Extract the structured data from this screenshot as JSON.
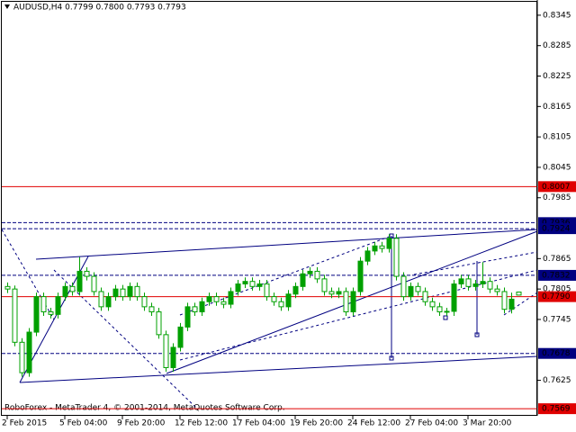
{
  "chart_data": {
    "type": "candlestick",
    "header": "AUDUSD,H4  0.7799 0.7800 0.7793 0.7793",
    "footer": "RoboForex - MetaTrader 4, © 2001-2014, MetaQuotes Software Corp.",
    "ylim": [
      0.7555,
      0.8375
    ],
    "yticks": [
      0.8345,
      0.8285,
      0.8225,
      0.8165,
      0.8105,
      0.8045,
      0.7985,
      0.7865,
      0.7805,
      0.7745,
      0.7625
    ],
    "levels": [
      {
        "value": 0.8007,
        "color": "#e00000",
        "dash": false
      },
      {
        "value": 0.7936,
        "color": "#000080",
        "dash": true
      },
      {
        "value": 0.7924,
        "color": "#000080",
        "dash": true
      },
      {
        "value": 0.7832,
        "color": "#000080",
        "dash": true
      },
      {
        "value": 0.779,
        "label": "0.7790",
        "color": "#e00000",
        "dash": false
      },
      {
        "value": 0.7678,
        "color": "#000080",
        "dash": true
      },
      {
        "value": 0.7569,
        "color": "#e00000",
        "dash": false
      }
    ],
    "bull_color": "#00a000",
    "bear_color": "#ffffff",
    "wick_color": "#00a000",
    "categories": [
      "2 Feb 2015",
      null,
      null,
      null,
      null,
      null,
      null,
      null,
      "5 Feb 04:00",
      null,
      null,
      null,
      null,
      null,
      null,
      null,
      "9 Feb 20:00",
      null,
      null,
      null,
      null,
      null,
      null,
      null,
      "12 Feb 12:00",
      null,
      null,
      null,
      null,
      null,
      null,
      null,
      "17 Feb 04:00",
      null,
      null,
      null,
      null,
      null,
      null,
      null,
      "19 Feb 20:00",
      null,
      null,
      null,
      null,
      null,
      null,
      null,
      "24 Feb 12:00",
      null,
      null,
      null,
      null,
      null,
      null,
      null,
      "27 Feb 04:00",
      null,
      null,
      null,
      null,
      null,
      null,
      null,
      "3 Mar 20:00",
      null,
      null,
      null,
      null,
      null,
      null,
      null
    ],
    "candles": [
      [
        0.781,
        0.7818,
        0.7797,
        0.7805
      ],
      [
        0.7805,
        0.7812,
        0.7692,
        0.77
      ],
      [
        0.77,
        0.7708,
        0.7632,
        0.764
      ],
      [
        0.764,
        0.7728,
        0.7632,
        0.772
      ],
      [
        0.772,
        0.7798,
        0.7712,
        0.779
      ],
      [
        0.779,
        0.7798,
        0.7752,
        0.776
      ],
      [
        0.776,
        0.7768,
        0.7747,
        0.7755
      ],
      [
        0.7755,
        0.7798,
        0.7747,
        0.779
      ],
      [
        0.779,
        0.7818,
        0.7782,
        0.781
      ],
      [
        0.781,
        0.7818,
        0.7792,
        0.78
      ],
      [
        0.78,
        0.7868,
        0.7792,
        0.784
      ],
      [
        0.784,
        0.7848,
        0.7822,
        0.783
      ],
      [
        0.783,
        0.7838,
        0.7792,
        0.78
      ],
      [
        0.78,
        0.7808,
        0.7762,
        0.777
      ],
      [
        0.777,
        0.7798,
        0.7762,
        0.779
      ],
      [
        0.779,
        0.7813,
        0.7782,
        0.7805
      ],
      [
        0.7805,
        0.7813,
        0.7782,
        0.779
      ],
      [
        0.779,
        0.7818,
        0.7782,
        0.781
      ],
      [
        0.781,
        0.7818,
        0.7782,
        0.779
      ],
      [
        0.779,
        0.7798,
        0.7762,
        0.777
      ],
      [
        0.777,
        0.7778,
        0.7752,
        0.776
      ],
      [
        0.776,
        0.7768,
        0.7707,
        0.7715
      ],
      [
        0.7715,
        0.7723,
        0.7642,
        0.765
      ],
      [
        0.765,
        0.7698,
        0.7642,
        0.769
      ],
      [
        0.769,
        0.7738,
        0.7682,
        0.773
      ],
      [
        0.773,
        0.7778,
        0.7722,
        0.777
      ],
      [
        0.777,
        0.7778,
        0.7752,
        0.776
      ],
      [
        0.776,
        0.7788,
        0.7752,
        0.778
      ],
      [
        0.778,
        0.7798,
        0.7772,
        0.779
      ],
      [
        0.779,
        0.7798,
        0.7772,
        0.778
      ],
      [
        0.778,
        0.7788,
        0.7767,
        0.7775
      ],
      [
        0.7775,
        0.7808,
        0.7767,
        0.78
      ],
      [
        0.78,
        0.7823,
        0.7792,
        0.7815
      ],
      [
        0.7815,
        0.7828,
        0.7807,
        0.782
      ],
      [
        0.782,
        0.7828,
        0.7802,
        0.781
      ],
      [
        0.781,
        0.7823,
        0.7802,
        0.7815
      ],
      [
        0.7815,
        0.7823,
        0.7782,
        0.779
      ],
      [
        0.779,
        0.7798,
        0.7772,
        0.778
      ],
      [
        0.778,
        0.7788,
        0.7762,
        0.777
      ],
      [
        0.777,
        0.7803,
        0.7762,
        0.7795
      ],
      [
        0.7795,
        0.7818,
        0.7787,
        0.781
      ],
      [
        0.781,
        0.7843,
        0.7802,
        0.7835
      ],
      [
        0.7835,
        0.7848,
        0.7827,
        0.784
      ],
      [
        0.784,
        0.7848,
        0.7817,
        0.7825
      ],
      [
        0.7825,
        0.7833,
        0.7792,
        0.78
      ],
      [
        0.78,
        0.7808,
        0.7787,
        0.7795
      ],
      [
        0.7795,
        0.7808,
        0.7787,
        0.78
      ],
      [
        0.78,
        0.7808,
        0.7752,
        0.776
      ],
      [
        0.776,
        0.7808,
        0.7752,
        0.78
      ],
      [
        0.78,
        0.7868,
        0.7792,
        0.786
      ],
      [
        0.786,
        0.7888,
        0.7852,
        0.788
      ],
      [
        0.788,
        0.7898,
        0.7872,
        0.789
      ],
      [
        0.789,
        0.7898,
        0.7877,
        0.7885
      ],
      [
        0.7885,
        0.7913,
        0.7877,
        0.7905
      ],
      [
        0.7905,
        0.7913,
        0.7822,
        0.783
      ],
      [
        0.783,
        0.7838,
        0.7782,
        0.779
      ],
      [
        0.779,
        0.7818,
        0.7782,
        0.781
      ],
      [
        0.781,
        0.7818,
        0.7792,
        0.78
      ],
      [
        0.78,
        0.7808,
        0.7772,
        0.778
      ],
      [
        0.778,
        0.7788,
        0.7762,
        0.777
      ],
      [
        0.777,
        0.7778,
        0.7752,
        0.776
      ],
      [
        0.776,
        0.7768,
        0.7752,
        0.7761
      ],
      [
        0.7761,
        0.7823,
        0.7752,
        0.7815
      ],
      [
        0.7815,
        0.7833,
        0.7807,
        0.7825
      ],
      [
        0.7825,
        0.7833,
        0.7802,
        0.781
      ],
      [
        0.781,
        0.7823,
        0.7802,
        0.7815
      ],
      [
        0.7815,
        0.7858,
        0.7807,
        0.782
      ],
      [
        0.782,
        0.7828,
        0.7797,
        0.7805
      ],
      [
        0.7805,
        0.7813,
        0.7792,
        0.78
      ],
      [
        0.78,
        0.7808,
        0.7757,
        0.7765
      ],
      [
        0.7765,
        0.7798,
        0.7757,
        0.7785
      ],
      [
        0.7799,
        0.78,
        0.7793,
        0.7793
      ]
    ]
  }
}
